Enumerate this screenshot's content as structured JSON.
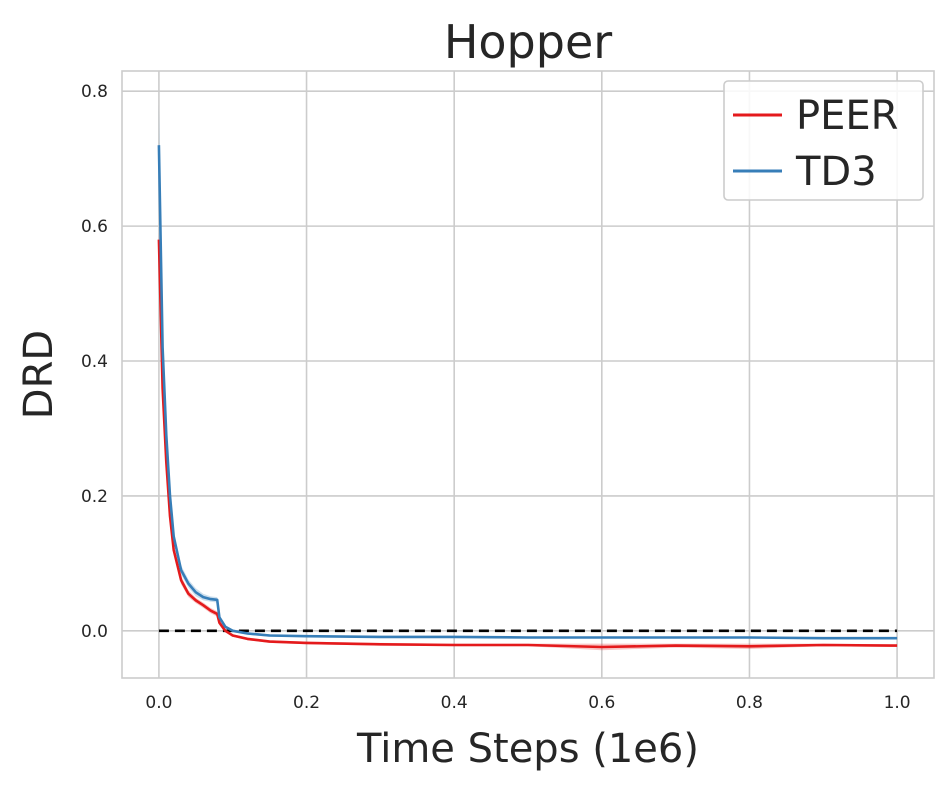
{
  "chart_data": {
    "type": "line",
    "title": "Hopper",
    "xlabel": "Time Steps (1e6)",
    "ylabel": "DRD",
    "xlim": [
      -0.05,
      1.05
    ],
    "ylim": [
      -0.07,
      0.83
    ],
    "xticks": [
      0.0,
      0.2,
      0.4,
      0.6,
      0.8,
      1.0
    ],
    "xtick_labels": [
      "0.0",
      "0.2",
      "0.4",
      "0.6",
      "0.8",
      "1.0"
    ],
    "yticks": [
      0.0,
      0.2,
      0.4,
      0.6,
      0.8
    ],
    "ytick_labels": [
      "0.0",
      "0.2",
      "0.4",
      "0.6",
      "0.8"
    ],
    "grid": true,
    "legend_position": "top-right",
    "series": [
      {
        "name": "PEER",
        "color": "#e41a1c",
        "x": [
          0.0,
          0.005,
          0.01,
          0.015,
          0.02,
          0.03,
          0.04,
          0.05,
          0.06,
          0.07,
          0.079,
          0.082,
          0.09,
          0.1,
          0.12,
          0.15,
          0.2,
          0.3,
          0.4,
          0.5,
          0.6,
          0.7,
          0.8,
          0.9,
          1.0
        ],
        "y": [
          0.58,
          0.36,
          0.25,
          0.17,
          0.12,
          0.075,
          0.055,
          0.045,
          0.038,
          0.03,
          0.025,
          0.012,
          0.0,
          -0.007,
          -0.012,
          -0.016,
          -0.018,
          -0.02,
          -0.021,
          -0.021,
          -0.024,
          -0.022,
          -0.023,
          -0.021,
          -0.022
        ],
        "band": [
          0.01,
          0.01,
          0.008,
          0.007,
          0.006,
          0.006,
          0.005,
          0.004,
          0.004,
          0.004,
          0.004,
          0.003,
          0.002,
          0.002,
          0.002,
          0.002,
          0.002,
          0.002,
          0.002,
          0.002,
          0.005,
          0.003,
          0.004,
          0.002,
          0.002
        ]
      },
      {
        "name": "TD3",
        "color": "#377eb8",
        "x": [
          0.0,
          0.005,
          0.01,
          0.015,
          0.02,
          0.03,
          0.04,
          0.05,
          0.06,
          0.07,
          0.079,
          0.082,
          0.09,
          0.1,
          0.12,
          0.15,
          0.2,
          0.3,
          0.4,
          0.5,
          0.6,
          0.7,
          0.8,
          0.9,
          1.0
        ],
        "y": [
          0.72,
          0.42,
          0.29,
          0.2,
          0.14,
          0.09,
          0.07,
          0.057,
          0.05,
          0.047,
          0.046,
          0.02,
          0.006,
          0.0,
          -0.004,
          -0.007,
          -0.008,
          -0.009,
          -0.009,
          -0.01,
          -0.01,
          -0.01,
          -0.01,
          -0.011,
          -0.011
        ],
        "band": [
          0.06,
          0.02,
          0.012,
          0.01,
          0.008,
          0.007,
          0.006,
          0.006,
          0.005,
          0.004,
          0.004,
          0.003,
          0.002,
          0.002,
          0.002,
          0.002,
          0.001,
          0.001,
          0.001,
          0.001,
          0.001,
          0.001,
          0.001,
          0.001,
          0.001
        ]
      }
    ],
    "reference_line": {
      "y": 0.0,
      "x": [
        0.0,
        1.0
      ],
      "color": "#000000",
      "style": "dashed"
    }
  }
}
